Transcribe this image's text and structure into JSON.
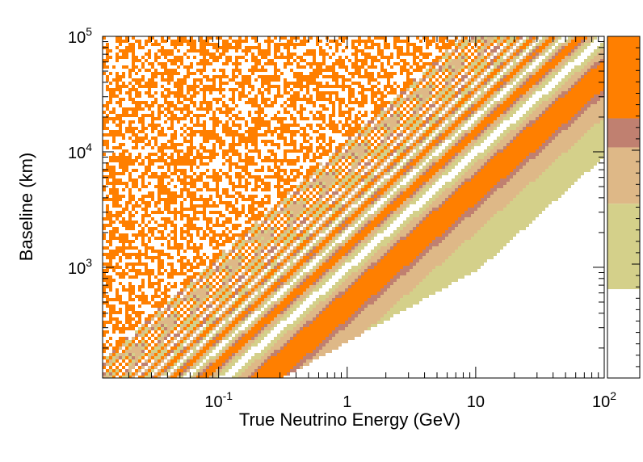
{
  "chart_data": {
    "type": "heatmap",
    "title": "",
    "xlabel": "True Neutrino Energy (GeV)",
    "ylabel": "Baseline (km)",
    "x_scale": "log",
    "y_scale": "log",
    "xlim": [
      0.0125,
      100
    ],
    "ylim": [
      110,
      100000
    ],
    "x_tick_labels": [
      {
        "value": 0.1,
        "base": "10",
        "exp": "-1"
      },
      {
        "value": 1,
        "base": "1",
        "exp": ""
      },
      {
        "value": 10,
        "base": "10",
        "exp": ""
      },
      {
        "value": 100,
        "base": "10",
        "exp": "2"
      }
    ],
    "y_tick_labels": [
      {
        "value": 1000,
        "base": "10",
        "exp": "3"
      },
      {
        "value": 10000,
        "base": "10",
        "exp": "4"
      },
      {
        "value": 100000,
        "base": "10",
        "exp": "5"
      }
    ],
    "grid": false,
    "legend": "none",
    "colors": {
      "level1": "#ff7f00",
      "level2": "#c08070",
      "level3": "#deb887",
      "level4": "#d4d08a",
      "background": "#ffffff"
    },
    "colorbar": {
      "placement": "right",
      "levels_top_to_bottom": [
        "#ff7f00",
        "#c08070",
        "#deb887",
        "#d4d08a",
        "#ffffff"
      ],
      "bounds_fraction_from_top": [
        0,
        0.24,
        0.325,
        0.49,
        0.74,
        1
      ]
    }
  }
}
